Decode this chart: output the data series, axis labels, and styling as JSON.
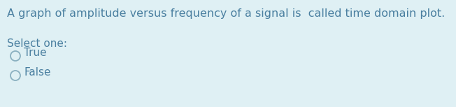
{
  "background_color": "#dff0f4",
  "question_text": "A graph of amplitude versus frequency of a signal is  called time domain plot.",
  "select_label": "Select one:",
  "options": [
    "True",
    "False"
  ],
  "text_color": "#4a7fa0",
  "font_size_question": 11.5,
  "font_size_options": 11,
  "fig_width": 6.52,
  "fig_height": 1.53,
  "dpi": 100
}
